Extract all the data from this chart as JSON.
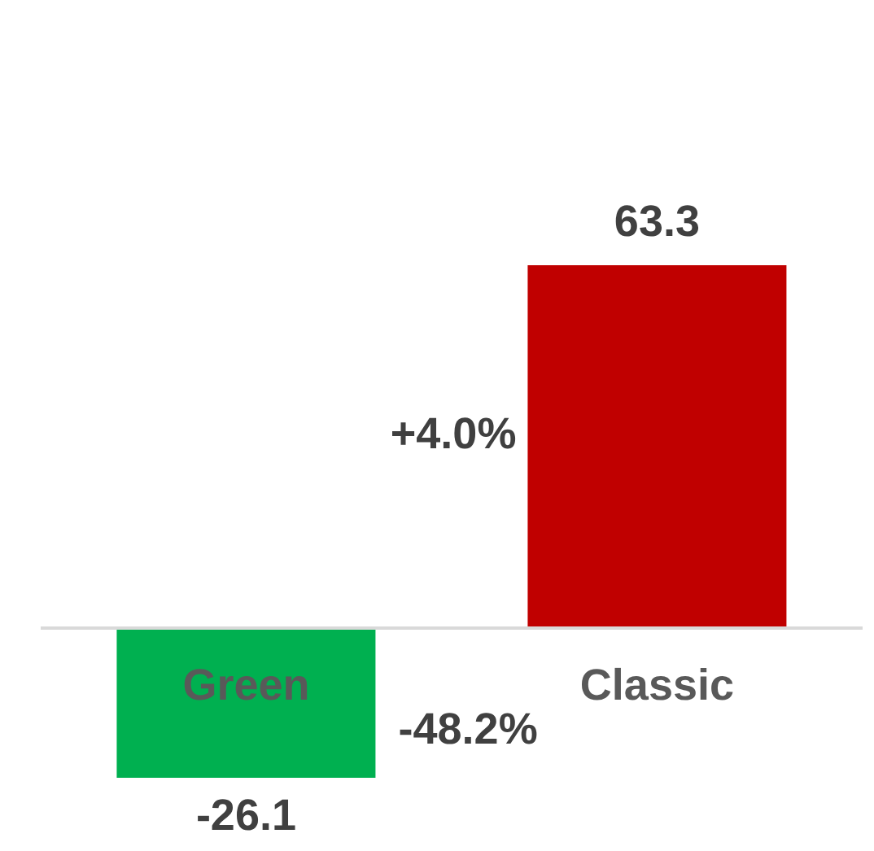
{
  "chart_data": {
    "type": "bar",
    "categories": [
      "Green",
      "Classic"
    ],
    "values": [
      -26.1,
      63.3
    ],
    "colors": [
      "#00b050",
      "#c00000"
    ],
    "data_labels": true,
    "tick_labels": "x",
    "annotations": [
      "-48.2%",
      "+4.0%"
    ]
  }
}
